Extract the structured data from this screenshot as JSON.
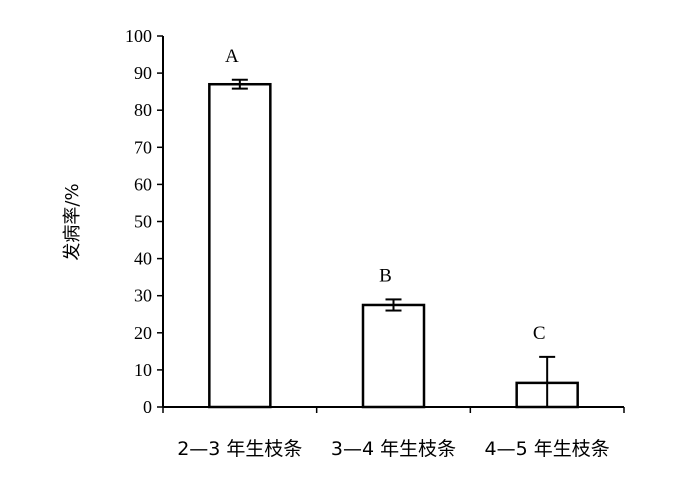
{
  "chart_data": {
    "type": "bar",
    "title": "",
    "xlabel": "",
    "ylabel": "发病率/%",
    "ylim": [
      0,
      100
    ],
    "yticks": [
      "0",
      "10",
      "20",
      "30",
      "40",
      "50",
      "60",
      "70",
      "80",
      "90",
      "100"
    ],
    "categories": [
      "2—3 年生枝条",
      "3—4 年生枝条",
      "4—5 年生枝条"
    ],
    "values": [
      87,
      27.5,
      6.5
    ],
    "errors": [
      1.2,
      1.5,
      7
    ],
    "significance_labels": [
      "A",
      "B",
      "C"
    ],
    "grid": false,
    "legend": "none",
    "bar_fill": "#ffffff",
    "bar_stroke": "#000000"
  }
}
